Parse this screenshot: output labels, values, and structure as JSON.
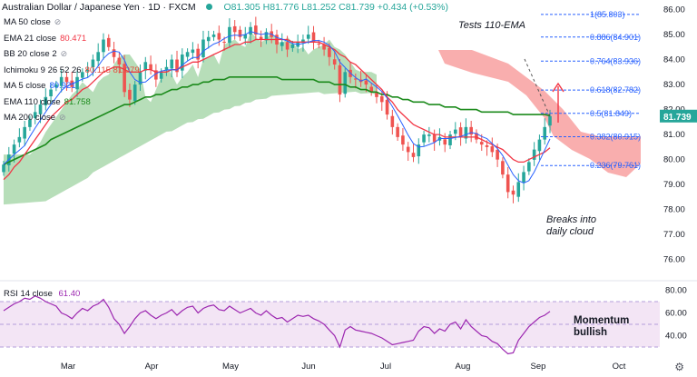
{
  "header": {
    "title": "Australian Dollar / Japanese Yen · 1D · FXCM",
    "ohlc": "O81.305 H81.776 L81.252 C81.739 +0.434 (+0.53%)"
  },
  "indicators": [
    {
      "label": "MA 50 close",
      "value": "",
      "color": "#131722",
      "eye": true
    },
    {
      "label": "EMA 21 close",
      "value": "80.471",
      "color": "#f23645",
      "eye": false
    },
    {
      "label": "BB 20 close 2",
      "value": "",
      "color": "#131722",
      "eye": true
    },
    {
      "label": "Ichimoku 9 26 52 26",
      "value": "80.115 81.079",
      "color": "#e54a3a",
      "eye": false
    },
    {
      "label": "MA 5 close",
      "value": "80.921",
      "color": "#2962ff",
      "eye": false
    },
    {
      "label": "EMA 110 close",
      "value": "81.758",
      "color": "#1b8a1b",
      "eye": false
    },
    {
      "label": "MA 200 close",
      "value": "",
      "color": "#131722",
      "eye": true
    }
  ],
  "rsi": {
    "label": "RSI 14 close",
    "value": "61.40",
    "color": "#9c27b0"
  },
  "annotations": {
    "tests": "Tests 110-EMA",
    "breaks_1": "Breaks into",
    "breaks_2": "daily cloud",
    "momentum_1": "Momentum",
    "momentum_2": "bullish"
  },
  "price_badge": {
    "value": "81.739",
    "color": "#26a69a"
  },
  "colors": {
    "up": "#26a69a",
    "down": "#ef5350",
    "ema21": "#f23645",
    "ema110": "#1b8a1b",
    "ma5": "#2962ff",
    "cloud_bull": "#a5d6a7",
    "cloud_bear": "#f8a5a5",
    "fib": "#2962ff",
    "rsi": "#9c27b0",
    "rsi_band": "#f3e5f5",
    "axis_text": "#131722",
    "arrow": "#f23645",
    "dash": "#555555"
  },
  "icons": {
    "eye": "eye-off-icon",
    "settings": "gear-icon"
  },
  "chart_data": [
    {
      "type": "candlestick",
      "title": "Australian Dollar / Japanese Yen · 1D · FXCM",
      "x_ticks": [
        "Mar",
        "Apr",
        "May",
        "Jun",
        "Jul",
        "Aug",
        "Sep",
        "Oct"
      ],
      "y_ticks": [
        76,
        77,
        78,
        79,
        80,
        81,
        82,
        83,
        84,
        85,
        86
      ],
      "ylim": [
        75.3,
        86.2
      ],
      "grid": false,
      "fib_levels": [
        {
          "ratio": "1",
          "label": "1(85.803)",
          "price": 85.803
        },
        {
          "ratio": "0.886",
          "label": "0.886(84.901)",
          "price": 84.901
        },
        {
          "ratio": "0.764",
          "label": "0.764(83.936)",
          "price": 83.936
        },
        {
          "ratio": "0.618",
          "label": "0.618(82.782)",
          "price": 82.782
        },
        {
          "ratio": "0.5",
          "label": "0.5(81.849)",
          "price": 81.849
        },
        {
          "ratio": "0.382",
          "label": "0.382(80.915)",
          "price": 80.915
        },
        {
          "ratio": "0.236",
          "label": "0.236(79.761)",
          "price": 79.761
        }
      ],
      "current_price": 81.739,
      "series_close": [
        79.8,
        80.2,
        80.6,
        80.9,
        81.3,
        81.6,
        81.9,
        82.2,
        82.5,
        82.8,
        83.0,
        83.3,
        83.1,
        82.9,
        83.3,
        83.5,
        83.6,
        84.0,
        84.3,
        84.8,
        84.5,
        84.1,
        83.8,
        82.7,
        82.4,
        83.0,
        83.5,
        83.9,
        83.6,
        83.2,
        83.5,
        83.7,
        84.0,
        83.5,
        84.2,
        84.3,
        84.4,
        84.0,
        84.8,
        84.9,
        85.0,
        84.8,
        84.7,
        85.3,
        85.1,
        84.9,
        85.0,
        85.3,
        85.0,
        84.8,
        85.1,
        84.9,
        84.6,
        84.7,
        84.4,
        84.6,
        84.7,
        84.8,
        85.0,
        84.7,
        84.6,
        84.4,
        84.1,
        83.8,
        82.6,
        83.5,
        83.3,
        83.2,
        83.1,
        83.0,
        82.7,
        82.5,
        82.3,
        81.8,
        81.3,
        80.9,
        80.6,
        80.3,
        80.1,
        80.6,
        81.0,
        81.0,
        80.7,
        80.9,
        80.6,
        81.0,
        81.2,
        80.9,
        81.3,
        81.0,
        80.8,
        80.6,
        80.5,
        80.3,
        80.0,
        79.4,
        78.7,
        78.6,
        79.1,
        79.5,
        79.9,
        80.4,
        80.8,
        81.3,
        81.739
      ],
      "ema_21": [
        79.2,
        79.4,
        79.7,
        79.9,
        80.2,
        80.5,
        80.8,
        81.1,
        81.4,
        81.7,
        81.9,
        82.1,
        82.3,
        82.4,
        82.6,
        82.8,
        82.9,
        83.1,
        83.3,
        83.5,
        83.6,
        83.7,
        83.7,
        83.6,
        83.5,
        83.5,
        83.5,
        83.6,
        83.6,
        83.5,
        83.5,
        83.5,
        83.6,
        83.6,
        83.7,
        83.8,
        83.9,
        83.9,
        84.0,
        84.1,
        84.2,
        84.3,
        84.4,
        84.5,
        84.6,
        84.6,
        84.7,
        84.7,
        84.8,
        84.8,
        84.8,
        84.8,
        84.8,
        84.8,
        84.8,
        84.7,
        84.7,
        84.7,
        84.7,
        84.7,
        84.7,
        84.6,
        84.5,
        84.4,
        84.2,
        84.1,
        83.9,
        83.8,
        83.6,
        83.4,
        83.2,
        83.0,
        82.8,
        82.5,
        82.3,
        82.0,
        81.8,
        81.6,
        81.4,
        81.3,
        81.2,
        81.1,
        81.0,
        81.0,
        80.9,
        80.9,
        80.9,
        80.9,
        80.9,
        80.9,
        80.9,
        80.8,
        80.7,
        80.6,
        80.5,
        80.4,
        80.2,
        80.0,
        79.9,
        79.9,
        80.0,
        80.1,
        80.2,
        80.3,
        80.471
      ],
      "ema_110": [
        79.8,
        79.9,
        80.0,
        80.1,
        80.2,
        80.3,
        80.4,
        80.5,
        80.6,
        80.8,
        80.9,
        81.0,
        81.1,
        81.2,
        81.3,
        81.4,
        81.5,
        81.6,
        81.7,
        81.8,
        81.9,
        82.0,
        82.1,
        82.2,
        82.2,
        82.3,
        82.4,
        82.5,
        82.5,
        82.6,
        82.6,
        82.7,
        82.8,
        82.8,
        82.9,
        82.9,
        83.0,
        83.0,
        83.1,
        83.1,
        83.2,
        83.2,
        83.2,
        83.3,
        83.3,
        83.3,
        83.3,
        83.3,
        83.3,
        83.3,
        83.3,
        83.3,
        83.3,
        83.2,
        83.2,
        83.2,
        83.2,
        83.2,
        83.2,
        83.2,
        83.1,
        83.1,
        83.1,
        83.0,
        83.0,
        83.0,
        82.9,
        82.9,
        82.8,
        82.8,
        82.7,
        82.7,
        82.6,
        82.6,
        82.5,
        82.5,
        82.4,
        82.4,
        82.3,
        82.3,
        82.3,
        82.2,
        82.2,
        82.2,
        82.1,
        82.1,
        82.1,
        82.0,
        82.0,
        82.0,
        82.0,
        81.9,
        81.9,
        81.9,
        81.9,
        81.9,
        81.9,
        81.8,
        81.8,
        81.8,
        81.8,
        81.8,
        81.8,
        81.8,
        81.758
      ]
    },
    {
      "type": "line",
      "title": "RSI 14 close",
      "y_ticks": [
        40.0,
        60.0,
        80.0
      ],
      "ylim": [
        22,
        86
      ],
      "band": [
        30,
        70
      ],
      "values": [
        62,
        65,
        68,
        70,
        73,
        72,
        75,
        73,
        70,
        68,
        66,
        60,
        58,
        55,
        60,
        64,
        62,
        66,
        68,
        72,
        65,
        55,
        50,
        42,
        48,
        55,
        60,
        62,
        58,
        55,
        58,
        60,
        63,
        58,
        62,
        65,
        66,
        60,
        64,
        66,
        67,
        63,
        62,
        66,
        63,
        60,
        62,
        64,
        60,
        58,
        62,
        58,
        55,
        56,
        52,
        55,
        58,
        57,
        58,
        55,
        53,
        50,
        45,
        40,
        30,
        45,
        48,
        45,
        44,
        43,
        42,
        40,
        38,
        35,
        32,
        33,
        34,
        35,
        36,
        44,
        48,
        47,
        42,
        46,
        44,
        50,
        52,
        46,
        54,
        48,
        44,
        40,
        39,
        35,
        33,
        28,
        24,
        25,
        36,
        42,
        48,
        52,
        56,
        58,
        61.4
      ]
    }
  ]
}
